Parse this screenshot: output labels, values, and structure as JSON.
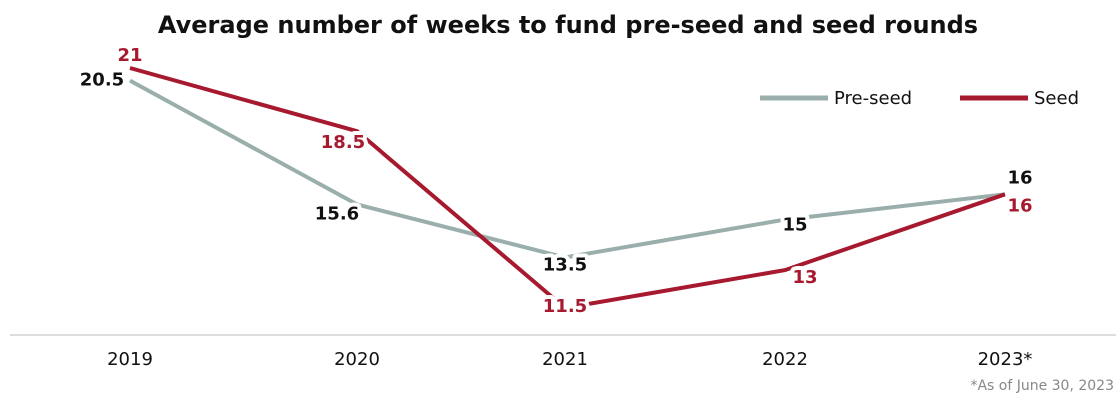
{
  "chart_data": {
    "type": "line",
    "title": "Average number of weeks to fund pre-seed and seed rounds",
    "categories": [
      "2019",
      "2020",
      "2021",
      "2022",
      "2023*"
    ],
    "series": [
      {
        "name": "Pre-seed",
        "color": "#9aafac",
        "label_color": "#111111",
        "values": [
          20.5,
          15.6,
          13.5,
          15,
          16
        ]
      },
      {
        "name": "Seed",
        "color": "#a6192e",
        "label_color": "#a6192e",
        "values": [
          21,
          18.5,
          11.5,
          13,
          16
        ]
      }
    ],
    "note": "*As of June 30, 2023",
    "legend": "top-right"
  }
}
